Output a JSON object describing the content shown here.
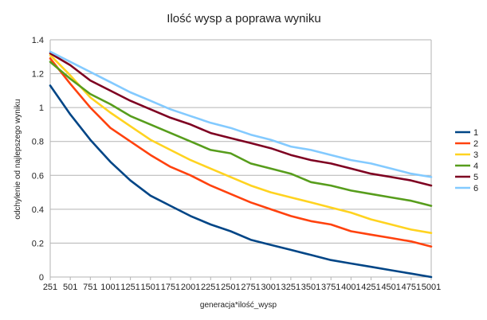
{
  "chart_data": {
    "type": "line",
    "title": "Ilość wysp a poprawa wyniku",
    "xlabel": "generacja*ilość_wysp",
    "ylabel": "odchylenie od najlepszego wyniku",
    "ylim": [
      0,
      1.4
    ],
    "yticks": [
      "0",
      "0.2",
      "0.4",
      "0.6",
      "0.8",
      "1",
      "1.2",
      "1.4"
    ],
    "grid": "horizontal",
    "legend_position": "right",
    "categories": [
      "251",
      "501",
      "751",
      "1001",
      "1251",
      "1501",
      "1751",
      "2001",
      "2251",
      "2501",
      "2751",
      "3001",
      "3251",
      "3501",
      "3751",
      "4001",
      "4251",
      "4501",
      "4751",
      "5001"
    ],
    "series": [
      {
        "name": "1",
        "color": "#004586",
        "values": [
          1.13,
          0.96,
          0.81,
          0.68,
          0.57,
          0.48,
          0.42,
          0.36,
          0.31,
          0.27,
          0.22,
          0.19,
          0.16,
          0.13,
          0.1,
          0.08,
          0.06,
          0.04,
          0.02,
          0.0
        ]
      },
      {
        "name": "2",
        "color": "#ff420e",
        "values": [
          1.29,
          1.14,
          1.0,
          0.88,
          0.8,
          0.72,
          0.65,
          0.6,
          0.54,
          0.49,
          0.44,
          0.4,
          0.36,
          0.33,
          0.31,
          0.27,
          0.25,
          0.23,
          0.21,
          0.18
        ]
      },
      {
        "name": "3",
        "color": "#ffd320",
        "values": [
          1.31,
          1.19,
          1.06,
          0.97,
          0.89,
          0.81,
          0.75,
          0.69,
          0.64,
          0.59,
          0.54,
          0.5,
          0.47,
          0.44,
          0.41,
          0.38,
          0.34,
          0.31,
          0.28,
          0.26
        ]
      },
      {
        "name": "4",
        "color": "#579d1c",
        "values": [
          1.27,
          1.17,
          1.08,
          1.02,
          0.95,
          0.9,
          0.85,
          0.8,
          0.75,
          0.73,
          0.67,
          0.64,
          0.61,
          0.56,
          0.54,
          0.51,
          0.49,
          0.47,
          0.45,
          0.42
        ]
      },
      {
        "name": "5",
        "color": "#7e0021",
        "values": [
          1.32,
          1.25,
          1.16,
          1.1,
          1.04,
          0.99,
          0.94,
          0.9,
          0.85,
          0.82,
          0.79,
          0.76,
          0.72,
          0.69,
          0.67,
          0.64,
          0.61,
          0.59,
          0.57,
          0.54
        ]
      },
      {
        "name": "6",
        "color": "#83caff",
        "values": [
          1.33,
          1.27,
          1.21,
          1.15,
          1.09,
          1.04,
          0.99,
          0.95,
          0.91,
          0.88,
          0.84,
          0.81,
          0.77,
          0.75,
          0.72,
          0.69,
          0.67,
          0.64,
          0.61,
          0.59
        ]
      }
    ]
  }
}
